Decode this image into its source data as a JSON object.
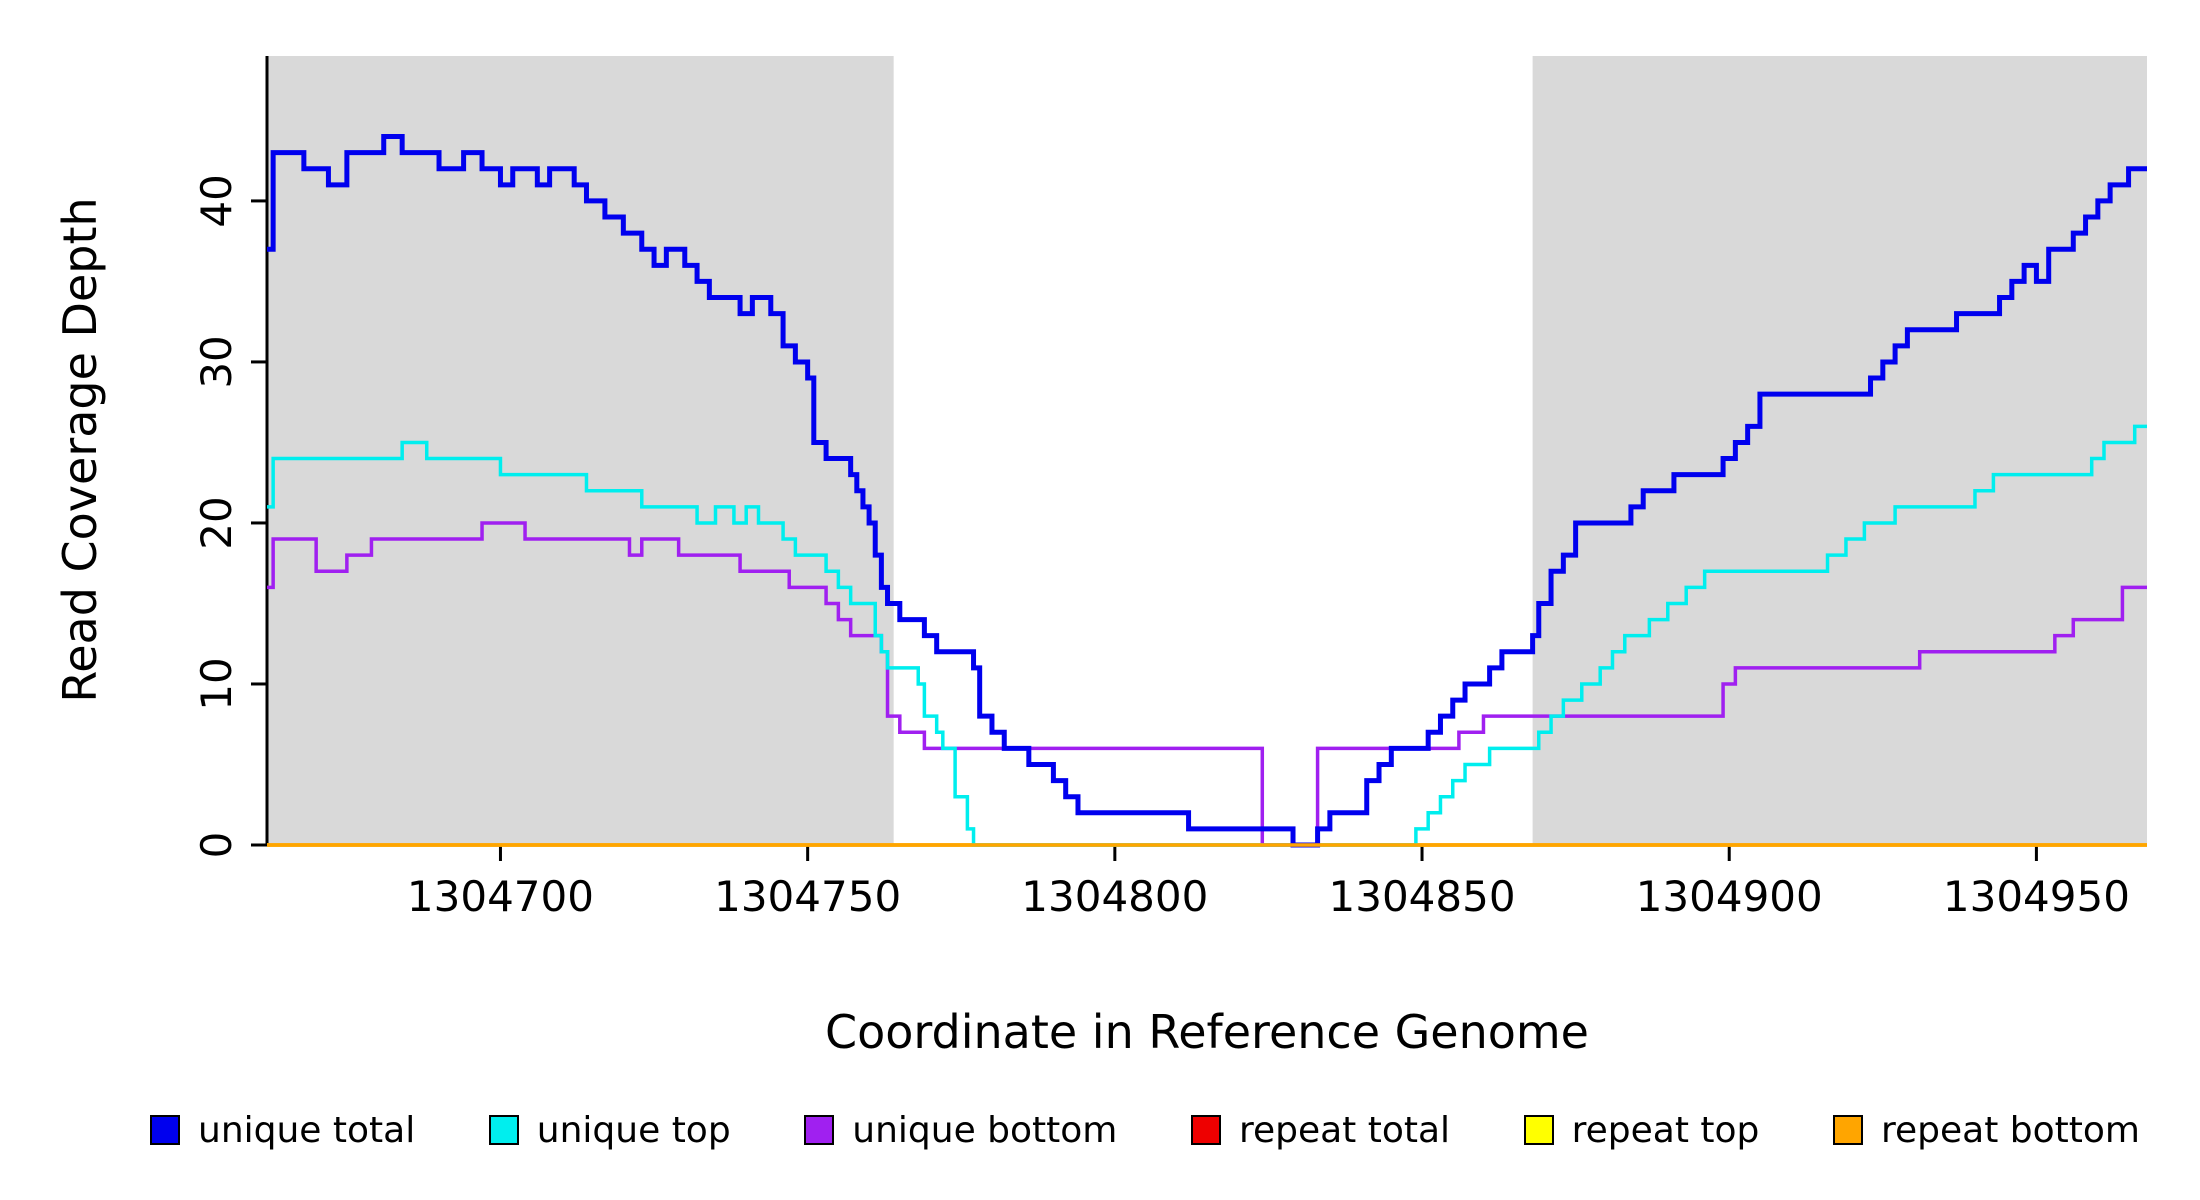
{
  "figure": {
    "background": "#FFFFFF",
    "axis_color": "#000000",
    "band_color": "#D9D9D9"
  },
  "chart_data": {
    "type": "line",
    "subtype": "step",
    "title": "",
    "xlabel": "Coordinate in Reference Genome",
    "ylabel": "Read Coverage Depth",
    "xlim": [
      1304662,
      1304968
    ],
    "ylim": [
      0,
      49
    ],
    "x_ticks": [
      1304700,
      1304750,
      1304800,
      1304850,
      1304900,
      1304950
    ],
    "y_ticks": [
      0,
      10,
      20,
      30,
      40
    ],
    "grid": false,
    "legend_position": "bottom",
    "shaded_regions": [
      {
        "x0": 1304662,
        "x1": 1304764,
        "color": "#D9D9D9"
      },
      {
        "x0": 1304868,
        "x1": 1304968,
        "color": "#D9D9D9"
      }
    ],
    "draw_order": [
      3,
      4,
      2,
      1,
      0,
      5
    ],
    "series": [
      {
        "name": "unique total",
        "color": "#0000EE",
        "width": 5,
        "points": [
          [
            1304662,
            37
          ],
          [
            1304663,
            43
          ],
          [
            1304668,
            42
          ],
          [
            1304672,
            41
          ],
          [
            1304675,
            43
          ],
          [
            1304681,
            44
          ],
          [
            1304684,
            43
          ],
          [
            1304690,
            42
          ],
          [
            1304694,
            43
          ],
          [
            1304697,
            42
          ],
          [
            1304700,
            41
          ],
          [
            1304702,
            42
          ],
          [
            1304706,
            41
          ],
          [
            1304708,
            42
          ],
          [
            1304712,
            41
          ],
          [
            1304714,
            40
          ],
          [
            1304717,
            39
          ],
          [
            1304720,
            38
          ],
          [
            1304723,
            37
          ],
          [
            1304725,
            36
          ],
          [
            1304727,
            37
          ],
          [
            1304730,
            36
          ],
          [
            1304732,
            35
          ],
          [
            1304734,
            34
          ],
          [
            1304739,
            33
          ],
          [
            1304741,
            34
          ],
          [
            1304744,
            33
          ],
          [
            1304746,
            31
          ],
          [
            1304748,
            30
          ],
          [
            1304750,
            29
          ],
          [
            1304751,
            25
          ],
          [
            1304753,
            24
          ],
          [
            1304756,
            24
          ],
          [
            1304757,
            23
          ],
          [
            1304758,
            22
          ],
          [
            1304759,
            21
          ],
          [
            1304760,
            20
          ],
          [
            1304761,
            18
          ],
          [
            1304762,
            16
          ],
          [
            1304763,
            15
          ],
          [
            1304765,
            14
          ],
          [
            1304768,
            14
          ],
          [
            1304769,
            13
          ],
          [
            1304771,
            12
          ],
          [
            1304775,
            12
          ],
          [
            1304777,
            11
          ],
          [
            1304778,
            8
          ],
          [
            1304780,
            7
          ],
          [
            1304782,
            6
          ],
          [
            1304785,
            6
          ],
          [
            1304786,
            5
          ],
          [
            1304789,
            5
          ],
          [
            1304790,
            4
          ],
          [
            1304792,
            3
          ],
          [
            1304794,
            2
          ],
          [
            1304805,
            2
          ],
          [
            1304811,
            2
          ],
          [
            1304812,
            1
          ],
          [
            1304828,
            1
          ],
          [
            1304829,
            0
          ],
          [
            1304832,
            0
          ],
          [
            1304833,
            1
          ],
          [
            1304835,
            2
          ],
          [
            1304840,
            2
          ],
          [
            1304841,
            4
          ],
          [
            1304843,
            5
          ],
          [
            1304845,
            6
          ],
          [
            1304849,
            6
          ],
          [
            1304851,
            7
          ],
          [
            1304853,
            8
          ],
          [
            1304855,
            9
          ],
          [
            1304857,
            10
          ],
          [
            1304860,
            10
          ],
          [
            1304861,
            11
          ],
          [
            1304863,
            12
          ],
          [
            1304867,
            12
          ],
          [
            1304868,
            13
          ],
          [
            1304869,
            15
          ],
          [
            1304871,
            17
          ],
          [
            1304873,
            18
          ],
          [
            1304875,
            20
          ],
          [
            1304882,
            20
          ],
          [
            1304884,
            21
          ],
          [
            1304886,
            22
          ],
          [
            1304889,
            22
          ],
          [
            1304891,
            23
          ],
          [
            1304897,
            23
          ],
          [
            1304899,
            24
          ],
          [
            1304901,
            25
          ],
          [
            1304903,
            26
          ],
          [
            1304905,
            28
          ],
          [
            1304921,
            28
          ],
          [
            1304923,
            29
          ],
          [
            1304925,
            30
          ],
          [
            1304927,
            31
          ],
          [
            1304929,
            32
          ],
          [
            1304935,
            32
          ],
          [
            1304937,
            33
          ],
          [
            1304942,
            33
          ],
          [
            1304944,
            34
          ],
          [
            1304946,
            35
          ],
          [
            1304948,
            36
          ],
          [
            1304950,
            35
          ],
          [
            1304952,
            37
          ],
          [
            1304956,
            38
          ],
          [
            1304958,
            39
          ],
          [
            1304960,
            40
          ],
          [
            1304962,
            41
          ],
          [
            1304965,
            42
          ],
          [
            1304968,
            42
          ]
        ]
      },
      {
        "name": "unique top",
        "color": "#00EEEE",
        "width": 3.5,
        "points": [
          [
            1304662,
            21
          ],
          [
            1304663,
            24
          ],
          [
            1304684,
            25
          ],
          [
            1304688,
            24
          ],
          [
            1304700,
            23
          ],
          [
            1304714,
            22
          ],
          [
            1304723,
            21
          ],
          [
            1304732,
            20
          ],
          [
            1304735,
            21
          ],
          [
            1304738,
            20
          ],
          [
            1304740,
            21
          ],
          [
            1304742,
            20
          ],
          [
            1304746,
            19
          ],
          [
            1304748,
            18
          ],
          [
            1304753,
            17
          ],
          [
            1304755,
            16
          ],
          [
            1304757,
            15
          ],
          [
            1304761,
            13
          ],
          [
            1304762,
            12
          ],
          [
            1304763,
            11
          ],
          [
            1304768,
            10
          ],
          [
            1304769,
            8
          ],
          [
            1304771,
            7
          ],
          [
            1304772,
            6
          ],
          [
            1304774,
            3
          ],
          [
            1304776,
            1
          ],
          [
            1304777,
            0
          ],
          [
            1304849,
            1
          ],
          [
            1304851,
            2
          ],
          [
            1304853,
            3
          ],
          [
            1304855,
            4
          ],
          [
            1304857,
            5
          ],
          [
            1304861,
            6
          ],
          [
            1304869,
            7
          ],
          [
            1304871,
            8
          ],
          [
            1304873,
            9
          ],
          [
            1304876,
            10
          ],
          [
            1304879,
            11
          ],
          [
            1304881,
            12
          ],
          [
            1304883,
            13
          ],
          [
            1304887,
            14
          ],
          [
            1304890,
            15
          ],
          [
            1304893,
            16
          ],
          [
            1304896,
            17
          ],
          [
            1304916,
            18
          ],
          [
            1304919,
            19
          ],
          [
            1304922,
            20
          ],
          [
            1304927,
            21
          ],
          [
            1304940,
            22
          ],
          [
            1304943,
            23
          ],
          [
            1304959,
            24
          ],
          [
            1304961,
            25
          ],
          [
            1304966,
            26
          ],
          [
            1304968,
            26
          ]
        ]
      },
      {
        "name": "unique bottom",
        "color": "#A020F0",
        "width": 3.5,
        "points": [
          [
            1304662,
            16
          ],
          [
            1304663,
            19
          ],
          [
            1304670,
            17
          ],
          [
            1304675,
            18
          ],
          [
            1304679,
            19
          ],
          [
            1304697,
            20
          ],
          [
            1304704,
            19
          ],
          [
            1304721,
            18
          ],
          [
            1304723,
            19
          ],
          [
            1304729,
            18
          ],
          [
            1304739,
            17
          ],
          [
            1304747,
            16
          ],
          [
            1304753,
            15
          ],
          [
            1304755,
            14
          ],
          [
            1304757,
            13
          ],
          [
            1304762,
            12
          ],
          [
            1304763,
            8
          ],
          [
            1304765,
            7
          ],
          [
            1304769,
            6
          ],
          [
            1304824,
            0
          ],
          [
            1304833,
            6
          ],
          [
            1304856,
            7
          ],
          [
            1304860,
            8
          ],
          [
            1304899,
            10
          ],
          [
            1304901,
            11
          ],
          [
            1304931,
            12
          ],
          [
            1304953,
            13
          ],
          [
            1304956,
            14
          ],
          [
            1304964,
            16
          ],
          [
            1304968,
            16
          ]
        ]
      },
      {
        "name": "repeat total",
        "color": "#EE0000",
        "width": 3.5,
        "points": [
          [
            1304662,
            0
          ],
          [
            1304968,
            0
          ]
        ]
      },
      {
        "name": "repeat top",
        "color": "#FFFF00",
        "width": 3.5,
        "points": [
          [
            1304662,
            0
          ],
          [
            1304968,
            0
          ]
        ]
      },
      {
        "name": "repeat bottom",
        "color": "#FFA500",
        "width": 3.5,
        "points": [
          [
            1304662,
            0
          ],
          [
            1304968,
            0
          ]
        ]
      }
    ]
  },
  "legend": {
    "items": [
      {
        "label": "unique total",
        "color": "#0000EE"
      },
      {
        "label": "unique top",
        "color": "#00EEEE"
      },
      {
        "label": "unique bottom",
        "color": "#A020F0"
      },
      {
        "label": "repeat total",
        "color": "#EE0000"
      },
      {
        "label": "repeat top",
        "color": "#FFFF00"
      },
      {
        "label": "repeat bottom",
        "color": "#FFA500"
      }
    ]
  }
}
